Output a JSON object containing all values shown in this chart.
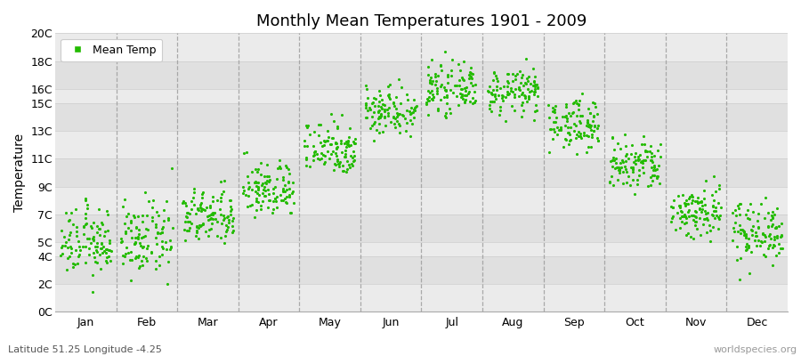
{
  "title": "Monthly Mean Temperatures 1901 - 2009",
  "ylabel": "Temperature",
  "subtitle": "Latitude 51.25 Longitude -4.25",
  "watermark": "worldspecies.org",
  "legend_label": "Mean Temp",
  "dot_color": "#22bb00",
  "bg_color": "#ebebeb",
  "stripe_light": "#ebebeb",
  "stripe_dark": "#e0e0e0",
  "grid_color": "#888888",
  "ytick_labels": [
    "0C",
    "2C",
    "4C",
    "5C",
    "7C",
    "9C",
    "11C",
    "13C",
    "15C",
    "16C",
    "18C",
    "20C"
  ],
  "ytick_values": [
    0,
    2,
    4,
    5,
    7,
    9,
    11,
    13,
    15,
    16,
    18,
    20
  ],
  "ylim": [
    0,
    20
  ],
  "months": [
    "Jan",
    "Feb",
    "Mar",
    "Apr",
    "May",
    "Jun",
    "Jul",
    "Aug",
    "Sep",
    "Oct",
    "Nov",
    "Dec"
  ],
  "month_means": [
    5.0,
    5.2,
    6.8,
    8.8,
    11.8,
    14.5,
    16.0,
    15.8,
    13.5,
    10.5,
    7.2,
    5.8
  ],
  "month_stds": [
    1.2,
    1.3,
    1.0,
    1.0,
    1.0,
    0.9,
    0.8,
    0.8,
    0.9,
    1.0,
    1.0,
    1.1
  ],
  "n_years": 109
}
